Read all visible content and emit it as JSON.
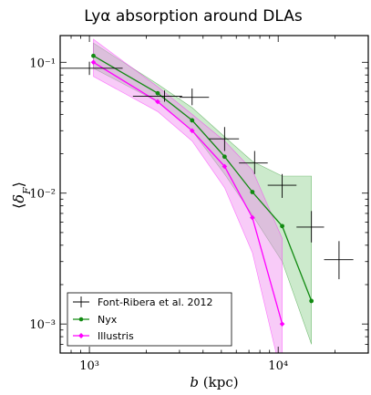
{
  "chart_data": {
    "type": "line",
    "title": "Lyα absorption around DLAs",
    "xlabel": "b (kpc)",
    "ylabel": "⟨δ_F⟩",
    "x_scale": "log",
    "y_scale": "log",
    "xlim": [
      700,
      30000
    ],
    "ylim": [
      0.0006,
      0.16
    ],
    "grid": false,
    "x_ticks": [
      {
        "value": 1000,
        "label": "10³"
      },
      {
        "value": 10000,
        "label": "10⁴"
      }
    ],
    "y_ticks": [
      {
        "value": 0.001,
        "label": "10⁻³"
      },
      {
        "value": 0.01,
        "label": "10⁻²"
      },
      {
        "value": 0.1,
        "label": "10⁻¹"
      }
    ],
    "legend_position": "bottom-left",
    "series": [
      {
        "name": "Font-Ribera et al. 2012",
        "color": "#000000",
        "marker": "none",
        "points": [
          {
            "x": 1000,
            "y": 0.09,
            "xerr": [
              720,
              1500
            ],
            "yerr": [
              0.08,
              0.101
            ]
          },
          {
            "x": 2500,
            "y": 0.055,
            "xerr": [
              1700,
              3100
            ],
            "yerr": [
              0.05,
              0.061
            ]
          },
          {
            "x": 3500,
            "y": 0.054,
            "xerr": [
              3000,
              4300
            ],
            "yerr": [
              0.047,
              0.063
            ]
          },
          {
            "x": 5200,
            "y": 0.026,
            "xerr": [
              4300,
              6200
            ],
            "yerr": [
              0.021,
              0.032
            ]
          },
          {
            "x": 7500,
            "y": 0.017,
            "xerr": [
              6200,
              8800
            ],
            "yerr": [
              0.014,
              0.021
            ]
          },
          {
            "x": 10500,
            "y": 0.0115,
            "xerr": [
              8800,
              12500
            ],
            "yerr": [
              0.0092,
              0.014
            ]
          },
          {
            "x": 15000,
            "y": 0.0055,
            "xerr": [
              12500,
              17500
            ],
            "yerr": [
              0.0042,
              0.0073
            ]
          },
          {
            "x": 21000,
            "y": 0.0031,
            "xerr": [
              17500,
              25000
            ],
            "yerr": [
              0.0022,
              0.0043
            ]
          }
        ]
      },
      {
        "name": "Nyx",
        "color": "#118a11",
        "band_color": "#8fd08f",
        "marker": "circle",
        "points": [
          {
            "x": 1050,
            "y": 0.112,
            "lo": 0.09,
            "hi": 0.14
          },
          {
            "x": 2300,
            "y": 0.058,
            "lo": 0.05,
            "hi": 0.068
          },
          {
            "x": 3500,
            "y": 0.036,
            "lo": 0.03,
            "hi": 0.045
          },
          {
            "x": 5200,
            "y": 0.019,
            "lo": 0.014,
            "hi": 0.027
          },
          {
            "x": 7300,
            "y": 0.0102,
            "lo": 0.0068,
            "hi": 0.0175
          },
          {
            "x": 10500,
            "y": 0.0056,
            "lo": 0.003,
            "hi": 0.0135
          },
          {
            "x": 15000,
            "y": 0.0015,
            "lo": 0.0007,
            "hi": 0.0135
          }
        ]
      },
      {
        "name": "Illustris",
        "color": "#ff00ff",
        "band_color": "#f08cf0",
        "marker": "diamond",
        "points": [
          {
            "x": 1050,
            "y": 0.1,
            "lo": 0.078,
            "hi": 0.15
          },
          {
            "x": 2300,
            "y": 0.05,
            "lo": 0.042,
            "hi": 0.065
          },
          {
            "x": 3500,
            "y": 0.03,
            "lo": 0.025,
            "hi": 0.04
          },
          {
            "x": 5200,
            "y": 0.016,
            "lo": 0.011,
            "hi": 0.025
          },
          {
            "x": 7300,
            "y": 0.0065,
            "lo": 0.0035,
            "hi": 0.015
          },
          {
            "x": 10500,
            "y": 0.001,
            "lo": 0.00038,
            "hi": 0.0045
          }
        ]
      }
    ]
  }
}
